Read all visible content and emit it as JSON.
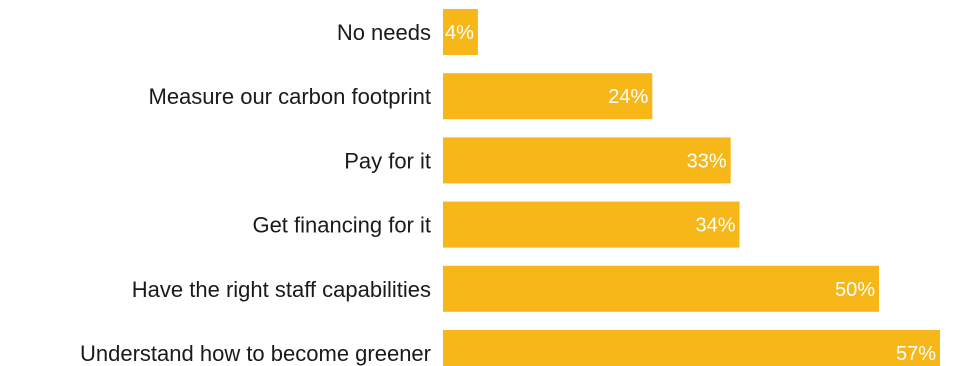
{
  "chart_data": {
    "type": "bar",
    "orientation": "horizontal",
    "categories": [
      "No needs",
      "Measure our carbon footprint",
      "Pay for it",
      "Get financing for it",
      "Have the right staff capabilities",
      "Understand how to become greener"
    ],
    "values": [
      4,
      24,
      33,
      34,
      50,
      57
    ],
    "value_labels": [
      "4%",
      "24%",
      "33%",
      "34%",
      "50%",
      "57%"
    ],
    "unit": "%",
    "title": "",
    "xlabel": "",
    "ylabel": "",
    "xlim": [
      0,
      57
    ],
    "grid": false,
    "legend": "none",
    "bar_color": "#F7B718",
    "label_color": "#1a1a1a",
    "value_label_color": "#ffffff"
  }
}
